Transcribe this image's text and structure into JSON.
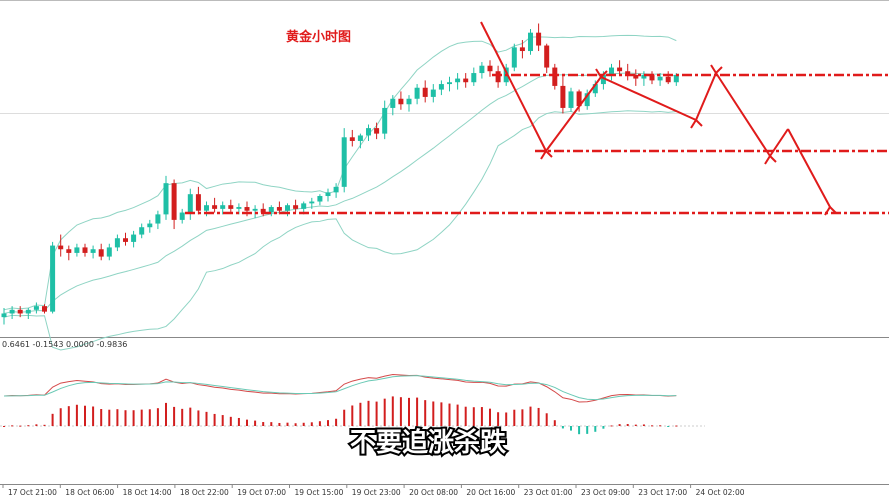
{
  "title": "黄金小时图",
  "caption": "不要追涨杀跌",
  "indicator_values": "0.6461 -0.1543 0.0000 -0.9836",
  "colors": {
    "bull": "#1fbfa6",
    "bear": "#d21e1e",
    "band": "#8fd4c4",
    "annotation": "#e01b1b",
    "macd_line": "#d44a4a",
    "signal_line": "#6ac9b5",
    "title": "#e01b1b"
  },
  "chart_data": [
    {
      "type": "candlestick",
      "name": "gold-hourly",
      "x_tick_labels": [
        "17 Oct 21:00",
        "18 Oct 06:00",
        "18 Oct 14:00",
        "18 Oct 22:00",
        "19 Oct 07:00",
        "19 Oct 15:00",
        "19 Oct 23:00",
        "20 Oct 08:00",
        "20 Oct 16:00",
        "23 Oct 01:00",
        "23 Oct 09:00",
        "23 Oct 17:00",
        "24 Oct 02:00"
      ],
      "price_range": [
        0,
        100
      ],
      "candles": [
        [
          7,
          12,
          3,
          9
        ],
        [
          9,
          13,
          6,
          11
        ],
        [
          11,
          13,
          7,
          9
        ],
        [
          9,
          12,
          6,
          11
        ],
        [
          11,
          15,
          9,
          13
        ],
        [
          13,
          14,
          9,
          10
        ],
        [
          10,
          48,
          9,
          46
        ],
        [
          46,
          52,
          40,
          44
        ],
        [
          44,
          46,
          38,
          42
        ],
        [
          42,
          47,
          40,
          45
        ],
        [
          45,
          47,
          40,
          42
        ],
        [
          42,
          46,
          39,
          44
        ],
        [
          44,
          47,
          38,
          40
        ],
        [
          40,
          47,
          38,
          45
        ],
        [
          45,
          52,
          43,
          50
        ],
        [
          50,
          53,
          46,
          48
        ],
        [
          48,
          54,
          45,
          52
        ],
        [
          52,
          58,
          50,
          56
        ],
        [
          56,
          60,
          53,
          58
        ],
        [
          58,
          65,
          55,
          63
        ],
        [
          63,
          84,
          60,
          80
        ],
        [
          80,
          82,
          55,
          60
        ],
        [
          60,
          66,
          58,
          64
        ],
        [
          64,
          77,
          60,
          74
        ],
        [
          74,
          78,
          63,
          65
        ],
        [
          65,
          70,
          62,
          68
        ],
        [
          68,
          72,
          64,
          66
        ],
        [
          66,
          70,
          63,
          68
        ],
        [
          68,
          71,
          64,
          66
        ],
        [
          66,
          69,
          63,
          67
        ],
        [
          67,
          70,
          62,
          65
        ],
        [
          65,
          68,
          61,
          66
        ],
        [
          66,
          69,
          62,
          64
        ],
        [
          64,
          68,
          62,
          67
        ],
        [
          67,
          70,
          63,
          65
        ],
        [
          65,
          69,
          62,
          68
        ],
        [
          68,
          71,
          64,
          66
        ],
        [
          66,
          70,
          63,
          69
        ],
        [
          69,
          72,
          66,
          70
        ],
        [
          70,
          74,
          68,
          73
        ],
        [
          73,
          77,
          70,
          75
        ],
        [
          75,
          80,
          72,
          78
        ],
        [
          78,
          110,
          75,
          105
        ],
        [
          105,
          109,
          100,
          103
        ],
        [
          103,
          107,
          99,
          106
        ],
        [
          106,
          112,
          103,
          110
        ],
        [
          110,
          113,
          104,
          107
        ],
        [
          107,
          125,
          104,
          121
        ],
        [
          121,
          128,
          117,
          126
        ],
        [
          126,
          130,
          120,
          123
        ],
        [
          123,
          128,
          119,
          126
        ],
        [
          126,
          134,
          123,
          132
        ],
        [
          132,
          136,
          124,
          127
        ],
        [
          127,
          134,
          124,
          131
        ],
        [
          131,
          136,
          128,
          134
        ],
        [
          134,
          138,
          130,
          135
        ],
        [
          135,
          140,
          131,
          137
        ],
        [
          137,
          140,
          132,
          135
        ],
        [
          135,
          143,
          133,
          140
        ],
        [
          140,
          146,
          137,
          144
        ],
        [
          144,
          147,
          138,
          141
        ],
        [
          141,
          144,
          132,
          135
        ],
        [
          135,
          145,
          133,
          143
        ],
        [
          143,
          156,
          141,
          154
        ],
        [
          154,
          158,
          148,
          152
        ],
        [
          152,
          164,
          150,
          162
        ],
        [
          162,
          167,
          152,
          155
        ],
        [
          155,
          156,
          140,
          143
        ],
        [
          143,
          145,
          131,
          133
        ],
        [
          133,
          139,
          118,
          121
        ],
        [
          121,
          132,
          119,
          130
        ],
        [
          130,
          131,
          119,
          122
        ],
        [
          122,
          131,
          120,
          129
        ],
        [
          129,
          136,
          127,
          134
        ],
        [
          134,
          141,
          131,
          139
        ],
        [
          139,
          145,
          136,
          143
        ],
        [
          143,
          147,
          139,
          141
        ],
        [
          141,
          145,
          136,
          139
        ],
        [
          139,
          142,
          133,
          137
        ],
        [
          137,
          141,
          133,
          139
        ],
        [
          139,
          141,
          134,
          136
        ],
        [
          136,
          140,
          133,
          138
        ],
        [
          138,
          141,
          134,
          135
        ],
        [
          135,
          140,
          133,
          139
        ]
      ]
    },
    {
      "type": "macd",
      "name": "indicator",
      "values": [
        0.6461,
        -0.1543,
        0.0,
        -0.9836
      ]
    }
  ],
  "annotations": {
    "levels": [
      "resistance",
      "support-upper",
      "support-lower"
    ]
  }
}
